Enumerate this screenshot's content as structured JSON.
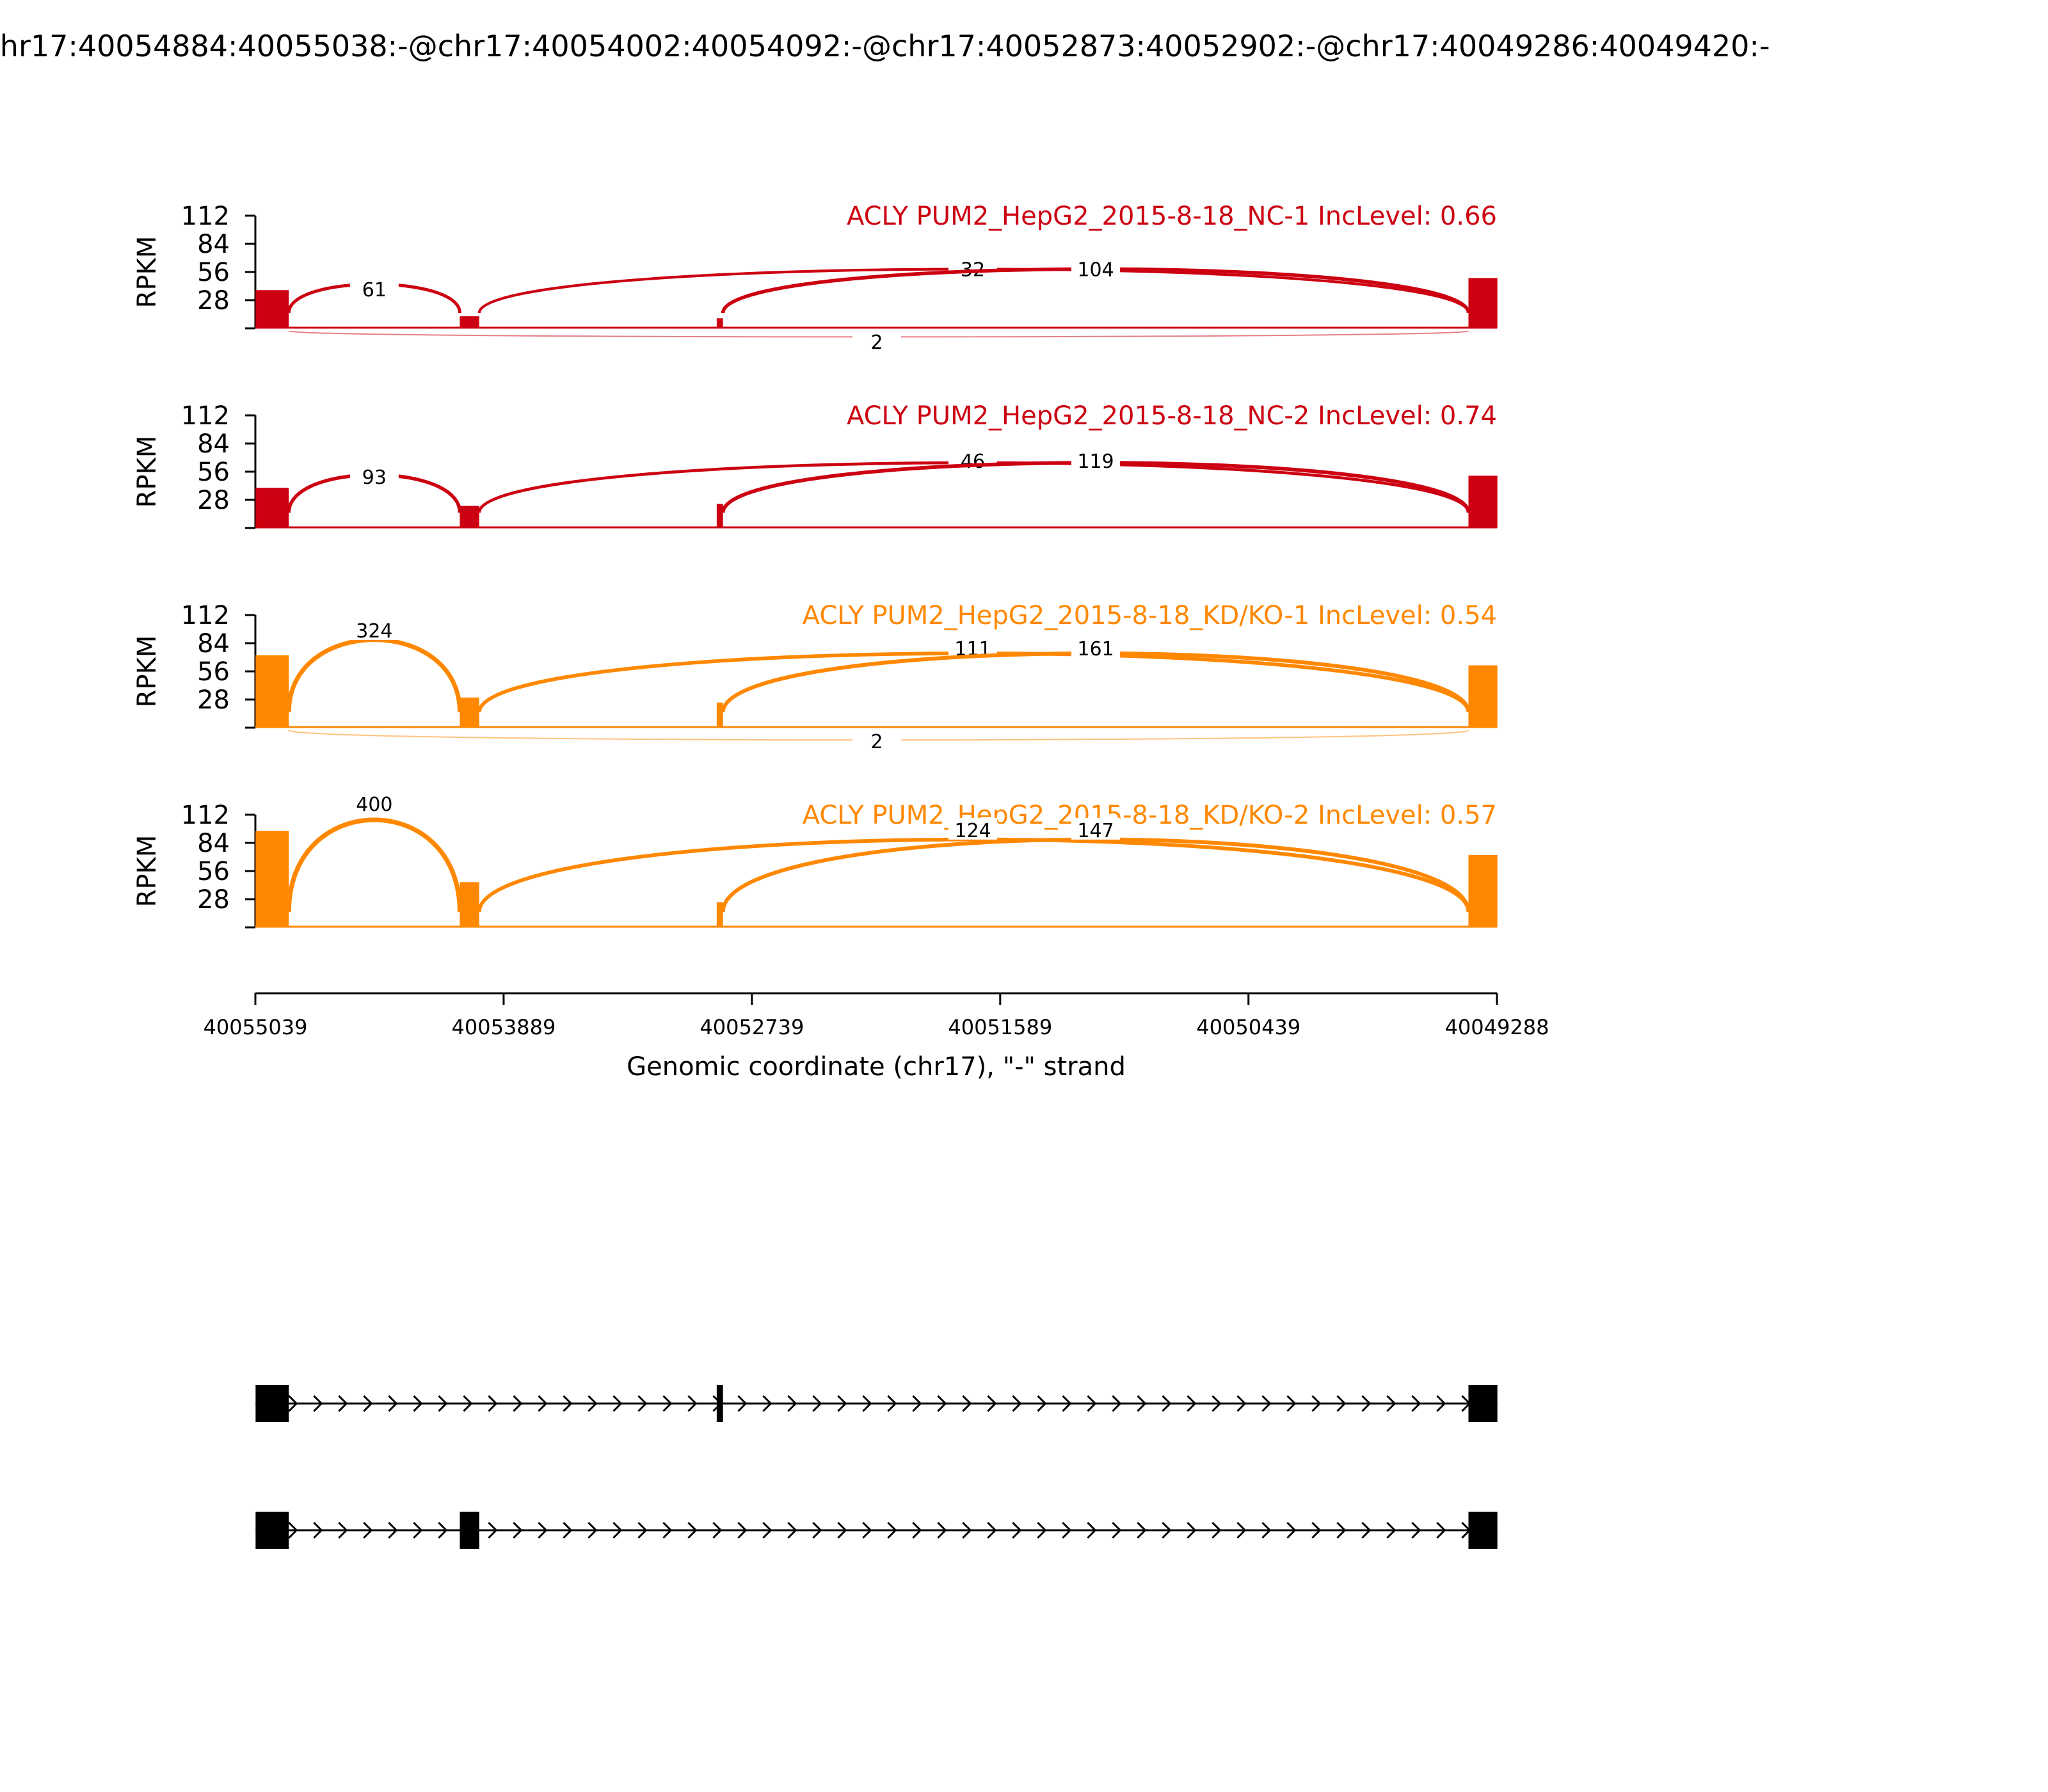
{
  "chart_data": {
    "type": "sashimi",
    "title": "chr17:40054884:40055038:-@chr17:40054002:40054092:-@chr17:40052873:40052902:-@chr17:40049286:40049420:-",
    "xlabel": "Genomic coordinate (chr17), \"-\" strand",
    "ylabel": "RPKM",
    "xlim": [
      40055039,
      40049288
    ],
    "x_ticks": [
      40055039,
      40053889,
      40052739,
      40051589,
      40050439,
      40049288
    ],
    "ylim": [
      0,
      112
    ],
    "y_ticks": [
      28,
      56,
      84,
      112
    ],
    "exons": [
      {
        "start": 40055038,
        "end": 40054884
      },
      {
        "start": 40054092,
        "end": 40054002
      },
      {
        "start": 40052902,
        "end": 40052873
      },
      {
        "start": 40049420,
        "end": 40049286
      }
    ],
    "panels": [
      {
        "label": "ACLY PUM2_HepG2_2015-8-18_NC-1 IncLevel: 0.66",
        "color": "#cc0011",
        "coverage": [
          38,
          12,
          10,
          50
        ],
        "junctions": [
          {
            "from": 40054884,
            "to": 40054092,
            "count": "61",
            "side": "above",
            "height": 28
          },
          {
            "from": 40054002,
            "to": 40049420,
            "count": "32",
            "side": "above",
            "height": 48
          },
          {
            "from": 40052873,
            "to": 40049420,
            "count": "104",
            "side": "above",
            "height": 48
          },
          {
            "from": 40054884,
            "to": 40049420,
            "count": "2",
            "side": "below",
            "height": 15
          }
        ]
      },
      {
        "label": "ACLY PUM2_HepG2_2015-8-18_NC-2 IncLevel: 0.74",
        "color": "#cc0011",
        "coverage": [
          40,
          22,
          24,
          52
        ],
        "junctions": [
          {
            "from": 40054884,
            "to": 40054092,
            "count": "93",
            "side": "above",
            "height": 40
          },
          {
            "from": 40054002,
            "to": 40049420,
            "count": "46",
            "side": "above",
            "height": 56
          },
          {
            "from": 40052873,
            "to": 40049420,
            "count": "119",
            "side": "above",
            "height": 56
          }
        ]
      },
      {
        "label": "ACLY PUM2_HepG2_2015-8-18_KD/KO-1 IncLevel: 0.54",
        "color": "#ff8800",
        "coverage": [
          72,
          30,
          25,
          62
        ],
        "junctions": [
          {
            "from": 40054884,
            "to": 40054092,
            "count": "324",
            "side": "above",
            "height": 86
          },
          {
            "from": 40054002,
            "to": 40049420,
            "count": "111",
            "side": "above",
            "height": 68
          },
          {
            "from": 40052873,
            "to": 40049420,
            "count": "161",
            "side": "above",
            "height": 68
          },
          {
            "from": 40054884,
            "to": 40049420,
            "count": "2",
            "side": "below",
            "height": 22
          }
        ]
      },
      {
        "label": "ACLY PUM2_HepG2_2015-8-18_KD/KO-2 IncLevel: 0.57",
        "color": "#ff8800",
        "coverage": [
          96,
          45,
          25,
          72
        ],
        "junctions": [
          {
            "from": 40054884,
            "to": 40054092,
            "count": "400",
            "side": "above",
            "height": 112
          },
          {
            "from": 40054002,
            "to": 40049420,
            "count": "124",
            "side": "above",
            "height": 86
          },
          {
            "from": 40052873,
            "to": 40049420,
            "count": "147",
            "side": "above",
            "height": 86
          }
        ]
      }
    ],
    "isoforms": [
      {
        "exons": [
          0,
          2,
          3
        ]
      },
      {
        "exons": [
          0,
          1,
          3
        ]
      }
    ]
  }
}
